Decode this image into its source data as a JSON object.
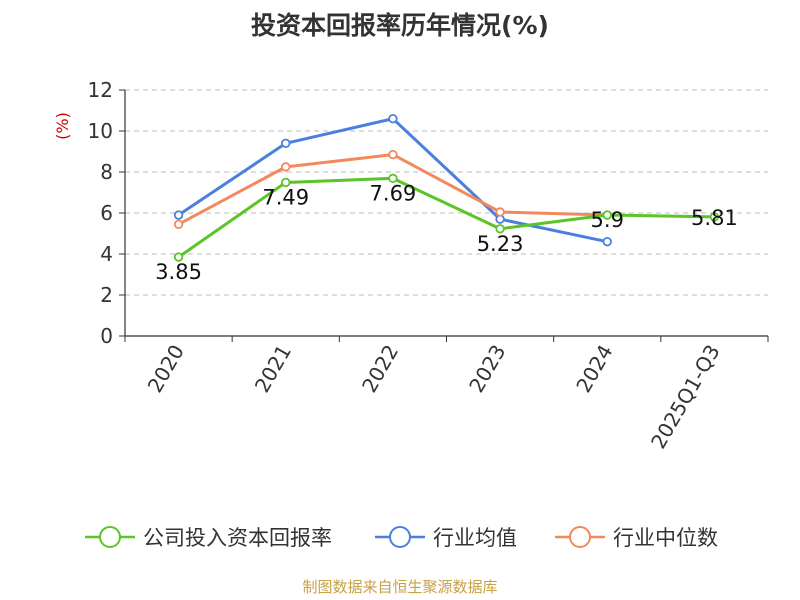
{
  "chart_data": {
    "type": "line",
    "title": "投资本回报率历年情况(%)",
    "ylabel": "(%)",
    "xlabel": "",
    "categories": [
      "2020",
      "2021",
      "2022",
      "2023",
      "2024",
      "2025Q1-Q3"
    ],
    "ylim": [
      0,
      12
    ],
    "yticks": [
      0,
      2,
      4,
      6,
      8,
      10,
      12
    ],
    "grid": true,
    "legend_position": "bottom",
    "series": [
      {
        "name": "公司投入资本回报率",
        "color": "#5bc428",
        "values": [
          3.85,
          7.49,
          7.69,
          5.23,
          5.9,
          5.81
        ],
        "show_labels": true
      },
      {
        "name": "行业均值",
        "color": "#4a7fe0",
        "values": [
          5.9,
          9.4,
          10.6,
          5.7,
          4.6,
          null
        ],
        "show_labels": false
      },
      {
        "name": "行业中位数",
        "color": "#f2895c",
        "values": [
          5.45,
          8.25,
          8.85,
          6.05,
          5.9,
          null
        ],
        "show_labels": false
      }
    ],
    "data_labels": [
      "3.85",
      "7.49",
      "7.69",
      "5.23",
      "5.9",
      "5.81"
    ]
  },
  "source": "制图数据来自恒生聚源数据库"
}
